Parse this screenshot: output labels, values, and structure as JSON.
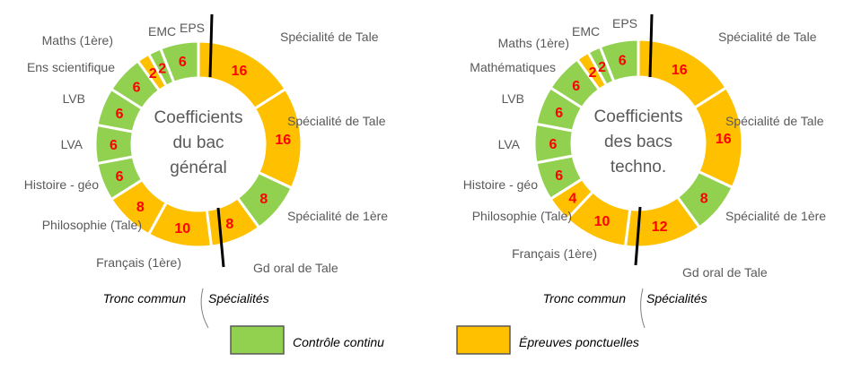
{
  "colors": {
    "controle_continu": "#92d050",
    "epreuves_ponctuelles": "#ffc000",
    "value_text": "#ff0000"
  },
  "legend": {
    "items": [
      {
        "label": "Contrôle continu",
        "color": "#92d050"
      },
      {
        "label": "Épreuves ponctuelles",
        "color": "#ffc000"
      }
    ]
  },
  "chart_data": [
    {
      "type": "donut",
      "title_lines": [
        "Coefficients",
        "du bac",
        "général"
      ],
      "split_labels": [
        "Tronc commun",
        "Spécialités"
      ],
      "segments": [
        {
          "label": "EPS",
          "value": 6,
          "category": "controle_continu"
        },
        {
          "label": "Spécialité de Tale",
          "value": 16,
          "category": "epreuves_ponctuelles"
        },
        {
          "label": "Spécialité de Tale",
          "value": 16,
          "category": "epreuves_ponctuelles"
        },
        {
          "label": "Spécialité de 1ère",
          "value": 8,
          "category": "controle_continu"
        },
        {
          "label": "Gd oral de Tale",
          "value": 8,
          "category": "epreuves_ponctuelles"
        },
        {
          "label": "Français (1ère)",
          "value": 10,
          "category": "epreuves_ponctuelles"
        },
        {
          "label": "Philosophie (Tale)",
          "value": 8,
          "category": "epreuves_ponctuelles"
        },
        {
          "label": "Histoire - géo",
          "value": 6,
          "category": "controle_continu"
        },
        {
          "label": "LVA",
          "value": 6,
          "category": "controle_continu"
        },
        {
          "label": "LVB",
          "value": 6,
          "category": "controle_continu"
        },
        {
          "label": "Ens scientifique",
          "value": 6,
          "category": "controle_continu"
        },
        {
          "label": "Maths (1ère)",
          "value": 2,
          "category": "epreuves_ponctuelles"
        },
        {
          "label": "EMC",
          "value": 2,
          "category": "controle_continu"
        }
      ]
    },
    {
      "type": "donut",
      "title_lines": [
        "Coefficients",
        "des bacs",
        "techno."
      ],
      "split_labels": [
        "Tronc commun",
        "Spécialités"
      ],
      "segments": [
        {
          "label": "EPS",
          "value": 6,
          "category": "controle_continu"
        },
        {
          "label": "Spécialité de Tale",
          "value": 16,
          "category": "epreuves_ponctuelles"
        },
        {
          "label": "Spécialité de Tale",
          "value": 16,
          "category": "epreuves_ponctuelles"
        },
        {
          "label": "Spécialité de 1ère",
          "value": 8,
          "category": "controle_continu"
        },
        {
          "label": "Gd oral de Tale",
          "value": 12,
          "category": "epreuves_ponctuelles"
        },
        {
          "label": "Français (1ère)",
          "value": 10,
          "category": "epreuves_ponctuelles"
        },
        {
          "label": "Philosophie (Tale)",
          "value": 4,
          "category": "epreuves_ponctuelles"
        },
        {
          "label": "Histoire - géo",
          "value": 6,
          "category": "controle_continu"
        },
        {
          "label": "LVA",
          "value": 6,
          "category": "controle_continu"
        },
        {
          "label": "LVB",
          "value": 6,
          "category": "controle_continu"
        },
        {
          "label": "Mathématiques",
          "value": 6,
          "category": "controle_continu"
        },
        {
          "label": "Maths (1ère)",
          "value": 2,
          "category": "epreuves_ponctuelles"
        },
        {
          "label": "EMC",
          "value": 2,
          "category": "controle_continu"
        }
      ]
    }
  ]
}
